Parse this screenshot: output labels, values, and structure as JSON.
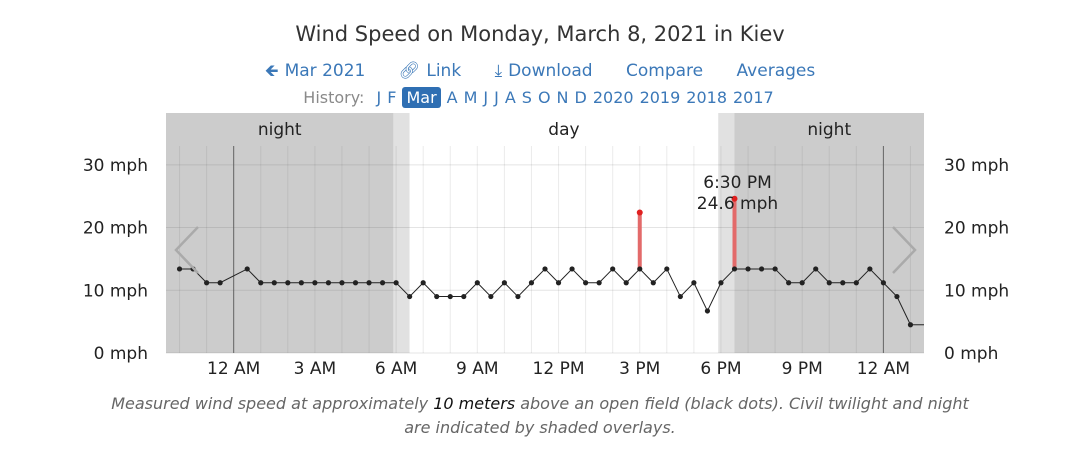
{
  "header": {
    "title": "Wind Speed on Monday, March 8, 2021 in Kiev",
    "nav": {
      "prev": "Mar 2021",
      "link": "Link",
      "download": "Download",
      "compare": "Compare",
      "averages": "Averages"
    },
    "history": {
      "label": "History:",
      "items": [
        "J",
        "F",
        "Mar",
        "A",
        "M",
        "J",
        "J",
        "A",
        "S",
        "O",
        "N",
        "D",
        "2020",
        "2019",
        "2018",
        "2017"
      ],
      "selected_index": 2
    }
  },
  "colors": {
    "link": "#3b78b8",
    "night_shade": "#cccccc",
    "twilight_shade": "#e1e1e1",
    "gust_bar": "#e36a6a",
    "gust_dot": "#e02020",
    "line": "#222222"
  },
  "chart_data": {
    "type": "line",
    "title": "Wind Speed on Monday, March 8, 2021 in Kiev",
    "y_unit": "mph",
    "ylim": [
      0,
      33
    ],
    "yticks": [
      0,
      10,
      20,
      30
    ],
    "ytick_labels": [
      "0 mph",
      "10 mph",
      "20 mph",
      "30 mph"
    ],
    "x_unit": "hours after midnight",
    "xlim": [
      -2.5,
      25.5
    ],
    "xticks": [
      0,
      3,
      6,
      9,
      12,
      15,
      18,
      21,
      24
    ],
    "xtick_labels": [
      "12 AM",
      "3 AM",
      "6 AM",
      "9 AM",
      "12 PM",
      "3 PM",
      "6 PM",
      "9 PM",
      "12 AM"
    ],
    "bands": [
      {
        "label": "night",
        "start": -2.5,
        "end": 5.9,
        "kind": "night"
      },
      {
        "label": "",
        "start": 5.9,
        "end": 6.5,
        "kind": "twilight"
      },
      {
        "label": "day",
        "start": 6.5,
        "end": 17.9,
        "kind": "day"
      },
      {
        "label": "",
        "start": 17.9,
        "end": 18.5,
        "kind": "twilight"
      },
      {
        "label": "night",
        "start": 18.5,
        "end": 25.5,
        "kind": "night"
      }
    ],
    "series": [
      {
        "x": [
          -2,
          -1.5,
          -1,
          -0.5,
          0.5,
          1,
          1.5,
          2,
          2.5,
          3,
          3.5,
          4,
          4.5,
          5,
          5.5,
          6,
          6.5,
          7,
          7.5,
          8,
          8.5,
          9,
          9.5,
          10,
          10.5,
          11,
          11.5,
          12,
          12.5,
          13,
          13.5,
          14,
          14.5,
          15,
          15.5,
          16,
          16.5,
          17,
          17.5,
          18,
          18.5,
          19,
          19.5,
          20,
          20.5,
          21,
          21.5,
          22,
          22.5,
          23,
          23.5,
          24,
          24.5,
          25
        ],
        "values": [
          13.4,
          13.4,
          11.2,
          11.2,
          13.4,
          11.2,
          11.2,
          11.2,
          11.2,
          11.2,
          11.2,
          11.2,
          11.2,
          11.2,
          11.2,
          11.2,
          9,
          11.2,
          9,
          9,
          9,
          11.2,
          9,
          11.2,
          9,
          11.2,
          13.4,
          11.2,
          13.4,
          11.2,
          11.2,
          13.4,
          11.2,
          13.4,
          11.2,
          13.4,
          9,
          11.2,
          6.7,
          11.2,
          13.4,
          13.4,
          13.4,
          13.4,
          11.2,
          11.2,
          13.4,
          11.2,
          11.2,
          11.2,
          13.4,
          11.2,
          9,
          4.5
        ]
      }
    ],
    "tail": {
      "x": [
        25,
        25.5
      ],
      "values": [
        4.5,
        4.5
      ]
    },
    "gusts": [
      {
        "x": 15,
        "value": 22.4
      },
      {
        "x": 18.5,
        "value": 24.6
      }
    ],
    "tooltip": {
      "x": 18.5,
      "time": "6:30 PM",
      "value": "24.6 mph"
    }
  },
  "caption": {
    "pre": "Measured wind speed at approximately ",
    "highlight": "10 meters",
    "post": " above an open field (black dots). Civil twilight and night are indicated by shaded overlays."
  }
}
